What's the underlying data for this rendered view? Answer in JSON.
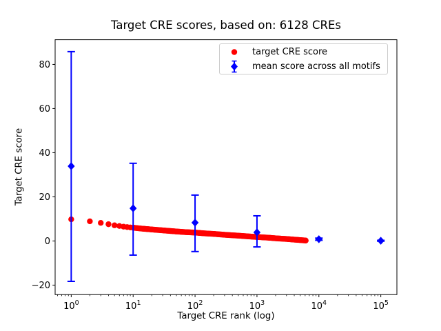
{
  "figure": {
    "background": "#ffffff",
    "text_color": "#000000"
  },
  "chart_data": {
    "type": "scatter",
    "title": "Target CRE scores, based on: 6128 CREs",
    "xlabel": "Target CRE rank (log)",
    "ylabel": "Target CRE score",
    "x_scale": "log",
    "xlim_log10": [
      -0.26,
      5.26
    ],
    "ylim": [
      -24.3,
      91.2
    ],
    "xticks": [
      1,
      10,
      100,
      1000,
      10000,
      100000
    ],
    "yticks": [
      -20,
      0,
      20,
      40,
      60,
      80
    ],
    "grid": false,
    "axis_color": "#000000",
    "legend": {
      "position": "upper-right",
      "border_color": "#cccccc",
      "background": "#ffffff"
    },
    "series": [
      {
        "name": "target CRE score",
        "color": "#ff0000",
        "marker": "circle",
        "n_points": 6128,
        "sample_points": [
          [
            1,
            9.8
          ],
          [
            2,
            8.9
          ],
          [
            3,
            8.2
          ],
          [
            4,
            7.6
          ],
          [
            5,
            7.1
          ],
          [
            6,
            6.8
          ],
          [
            7,
            6.5
          ],
          [
            8,
            6.3
          ],
          [
            10,
            6.0
          ],
          [
            15,
            5.5
          ],
          [
            20,
            5.2
          ],
          [
            30,
            4.8
          ],
          [
            50,
            4.3
          ],
          [
            70,
            4.0
          ],
          [
            100,
            3.8
          ],
          [
            150,
            3.4
          ],
          [
            200,
            3.2
          ],
          [
            300,
            2.8
          ],
          [
            500,
            2.4
          ],
          [
            700,
            2.1
          ],
          [
            1000,
            1.8
          ],
          [
            1500,
            1.5
          ],
          [
            2000,
            1.2
          ],
          [
            3000,
            0.9
          ],
          [
            4000,
            0.6
          ],
          [
            5000,
            0.4
          ],
          [
            6128,
            0.2
          ]
        ]
      },
      {
        "name": "mean score across all motifs",
        "color": "#0000ff",
        "marker": "diamond",
        "points": [
          {
            "x": 1,
            "y": 33.9,
            "lo": -18.3,
            "hi": 85.8
          },
          {
            "x": 10,
            "y": 14.8,
            "lo": -6.4,
            "hi": 35.2
          },
          {
            "x": 100,
            "y": 8.3,
            "lo": -4.8,
            "hi": 20.8
          },
          {
            "x": 1000,
            "y": 3.9,
            "lo": -2.7,
            "hi": 11.4
          },
          {
            "x": 10000,
            "y": 0.8,
            "lo": 0.3,
            "hi": 1.3
          },
          {
            "x": 100000,
            "y": 0.1,
            "lo": -0.1,
            "hi": 0.3
          }
        ]
      }
    ]
  }
}
